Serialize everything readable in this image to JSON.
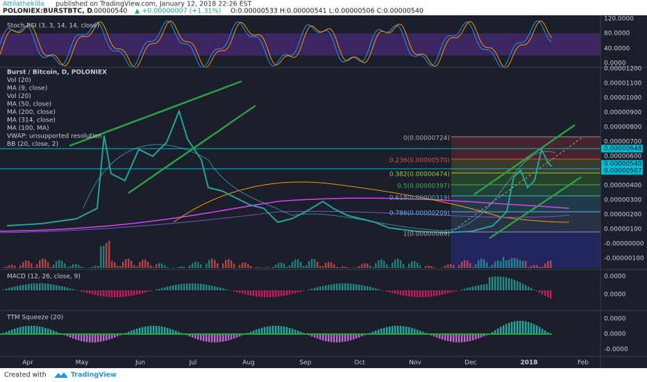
{
  "header": {
    "author": "Attilathekilla",
    "published": "published on TradingView.com, January 12, 2018 22:26 EST",
    "symbol": "POLONIEX:BURSTBTC, D",
    "last": "0.00000540",
    "change": "▲ +0.00000007 (+1.31%)",
    "ohlc": "O:0.00000533 H:0.00000541 L:0.00000506 C:0.00000540"
  },
  "stoch": {
    "title": "Stoch RSI (3, 3, 14, 14, close)",
    "axis": [
      "120.0000",
      "80.0000",
      "40.0000",
      "0.0000"
    ]
  },
  "main": {
    "legend": [
      "Burst / Bitcoin, D, POLONIEX",
      "Vol (20)",
      "MA (9, close)",
      "Vol (20)",
      "MA (50, close)",
      "MA (200, close)",
      "MA (314, close)",
      "MA (100, MA)",
      "VWAP: unsupported resolution",
      "BB (20, close, 2)"
    ],
    "axis": [
      "0.00001200",
      "0.00001100",
      "0.00001000",
      "0.00000900",
      "0.00000800",
      "0.00000700",
      "0.00000600",
      "0.00000400",
      "0.00000300",
      "0.00000200",
      "0.00000100",
      "-0.00000000",
      "-0.00000100"
    ],
    "tags": [
      "0.00000648",
      "0.00000540",
      "0.00000507"
    ],
    "fib": [
      "0(0.00000724)",
      "0.236(0.00000570)",
      "0.382(0.00000474)",
      "0.5(0.00000397)",
      "0.618(0.00000319)",
      "0.786(0.00000209)",
      "1(0.00000069)"
    ]
  },
  "macd": {
    "title": "MACD (12, 26, close, 9)",
    "axis": [
      "0.0000",
      "0.0000"
    ]
  },
  "ttm": {
    "title": "TTM Squeeze (20)",
    "axis": [
      "0.0000",
      "0.0000",
      "-0.0000"
    ]
  },
  "time_axis": [
    "Apr",
    "May",
    "Jun",
    "Jul",
    "Aug",
    "Sep",
    "Oct",
    "Nov",
    "Dec",
    "2018",
    "Feb"
  ],
  "footer": {
    "created": "Created with",
    "brand": "TradingView"
  }
}
